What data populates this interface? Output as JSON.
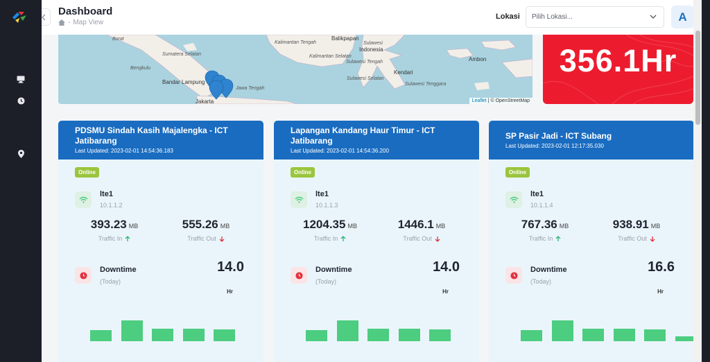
{
  "header": {
    "title": "Dashboard",
    "breadcrumb_sep": "-",
    "breadcrumb_current": "Map View",
    "lokasi_label": "Lokasi",
    "lokasi_placeholder": "Pilih Lokasi...",
    "avatar_initial": "A"
  },
  "sidebar": {
    "icons": [
      "monitor-icon",
      "clock-icon",
      "map-pin-icon"
    ]
  },
  "map": {
    "labels": [
      "Borat",
      "Sumatera Selatan",
      "Bengkulu",
      "Bandar Lampung",
      "Jakarta",
      "Jawa Tengah",
      "Kalimantan Tengah",
      "Kalimantan Selatan",
      "Balikpapan",
      "Sulawesi",
      "Indonesia",
      "Sulawesi Tengah",
      "Sulawesi Selatan",
      "Kendari",
      "Sulawesi Tenggara",
      "Ambon"
    ],
    "attribution_leaflet": "Leaflet",
    "attribution_rest": "| © OpenStreetMap"
  },
  "total_downtime": {
    "value": "356.1Hr"
  },
  "cards": [
    {
      "title": "PDSMU Sindah Kasih Majalengka - ICT Jatibarang",
      "updated": "Last Updated: 2023-02-01 14:54:36.183",
      "status": "Online",
      "interface": "lte1",
      "ip": "10.1.1.2",
      "traffic_in": "393.23",
      "traffic_in_unit": "MB",
      "traffic_in_label": "Traffic In",
      "traffic_out": "555.26",
      "traffic_out_unit": "MB",
      "traffic_out_label": "Traffic Out",
      "downtime_label": "Downtime",
      "downtime_sub": "(Today)",
      "downtime": "14.0",
      "downtime_unit": "Hr",
      "bars": [
        0.33,
        0.62,
        0.38,
        0.38,
        0.35
      ]
    },
    {
      "title": "Lapangan Kandang Haur Timur - ICT Jatibarang",
      "updated": "Last Updated: 2023-02-01 14:54:36.200",
      "status": "Online",
      "interface": "lte1",
      "ip": "10.1.1.3",
      "traffic_in": "1204.35",
      "traffic_in_unit": "MB",
      "traffic_in_label": "Traffic In",
      "traffic_out": "1446.1",
      "traffic_out_unit": "MB",
      "traffic_out_label": "Traffic Out",
      "downtime_label": "Downtime",
      "downtime_sub": "(Today)",
      "downtime": "14.0",
      "downtime_unit": "Hr",
      "bars": [
        0.33,
        0.62,
        0.38,
        0.38,
        0.35
      ]
    },
    {
      "title": "SP Pasir Jadi - ICT Subang",
      "updated": "Last Updated: 2023-02-01 12:17:35.030",
      "status": "Online",
      "interface": "lte1",
      "ip": "10.1.1.4",
      "traffic_in": "767.36",
      "traffic_in_unit": "MB",
      "traffic_in_label": "Traffic In",
      "traffic_out": "938.91",
      "traffic_out_unit": "MB",
      "traffic_out_label": "Traffic Out",
      "downtime_label": "Downtime",
      "downtime_sub": "(Today)",
      "downtime": "16.6",
      "downtime_unit": "Hr",
      "bars": [
        0.33,
        0.62,
        0.38,
        0.38,
        0.35,
        0.15
      ]
    }
  ],
  "colors": {
    "accent": "#1a6cc0",
    "alert": "#ec1c2e",
    "online": "#9bc53d",
    "bar": "#4ccd7f",
    "up": "#2bb673",
    "down": "#e0323e"
  }
}
